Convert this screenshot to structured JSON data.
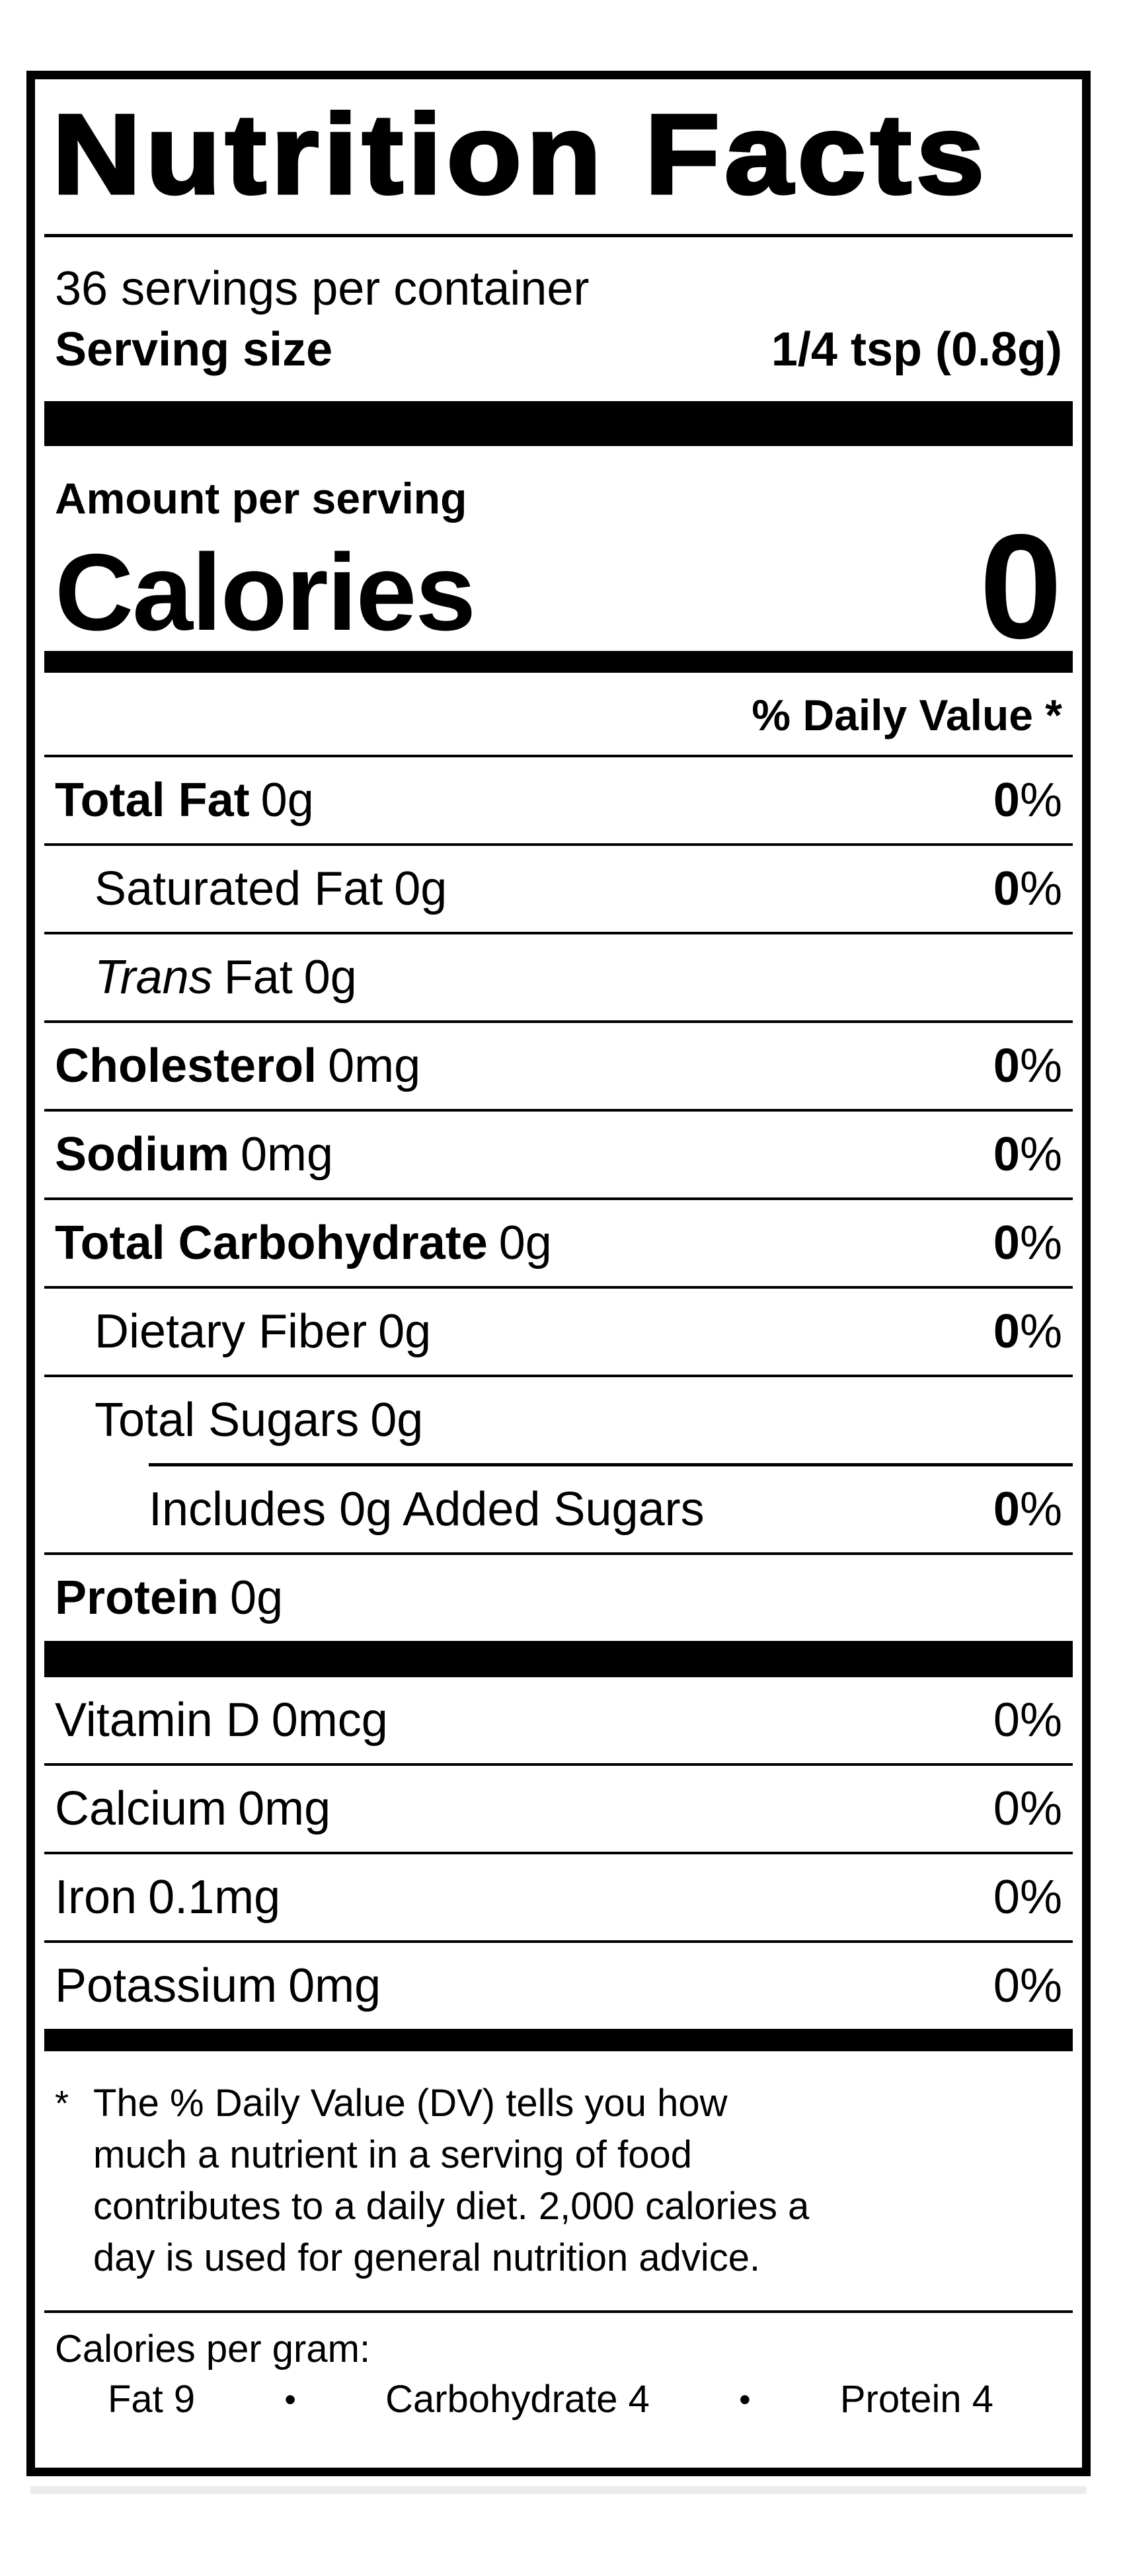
{
  "label": {
    "title": "Nutrition Facts",
    "servings_per_container": "36 servings per container",
    "serving_size": {
      "label": "Serving size",
      "value": "1/4 tsp (0.8g)"
    },
    "amount_per_serving": "Amount per serving",
    "calories": {
      "label": "Calories",
      "value": "0"
    },
    "daily_value_header": "% Daily Value *",
    "nutrients": [
      {
        "name": "Total Fat",
        "amount": "0g",
        "dv": "0",
        "dv_sign": "%"
      },
      {
        "name": "Saturated Fat",
        "amount": "0g",
        "dv": "0",
        "dv_sign": "%"
      },
      {
        "name_italic": "Trans",
        "name_rest": "Fat",
        "amount": "0g"
      },
      {
        "name": "Cholesterol",
        "amount": "0mg",
        "dv": "0",
        "dv_sign": "%"
      },
      {
        "name": "Sodium",
        "amount": "0mg",
        "dv": "0",
        "dv_sign": "%"
      },
      {
        "name": "Total Carbohydrate",
        "amount": "0g",
        "dv": "0",
        "dv_sign": "%"
      },
      {
        "name": "Dietary Fiber",
        "amount": "0g",
        "dv": "0",
        "dv_sign": "%"
      },
      {
        "name": "Total Sugars",
        "amount": "0g"
      },
      {
        "name": "Includes 0g Added Sugars",
        "dv": "0",
        "dv_sign": "%"
      },
      {
        "name": "Protein",
        "amount": "0g"
      }
    ],
    "vitamins": [
      {
        "name": "Vitamin D",
        "amount": "0mcg",
        "dv": "0",
        "dv_sign": "%"
      },
      {
        "name": "Calcium",
        "amount": "0mg",
        "dv": "0",
        "dv_sign": "%"
      },
      {
        "name": "Iron",
        "amount": "0.1mg",
        "dv": "0",
        "dv_sign": "%"
      },
      {
        "name": "Potassium",
        "amount": "0mg",
        "dv": "0",
        "dv_sign": "%"
      }
    ],
    "footnote": {
      "marker": "*",
      "lines": [
        "The % Daily Value (DV) tells you how",
        "much a nutrient in a serving of food",
        "contributes to a daily diet. 2,000 calories a",
        "day is used for general nutrition advice."
      ]
    },
    "calories_per_gram": {
      "label": "Calories per gram:",
      "bullet": "•",
      "items": [
        "Fat 9",
        "Carbohydrate 4",
        "Protein 4"
      ]
    },
    "colors": {
      "ink": "#000000",
      "paper": "#ffffff"
    }
  }
}
